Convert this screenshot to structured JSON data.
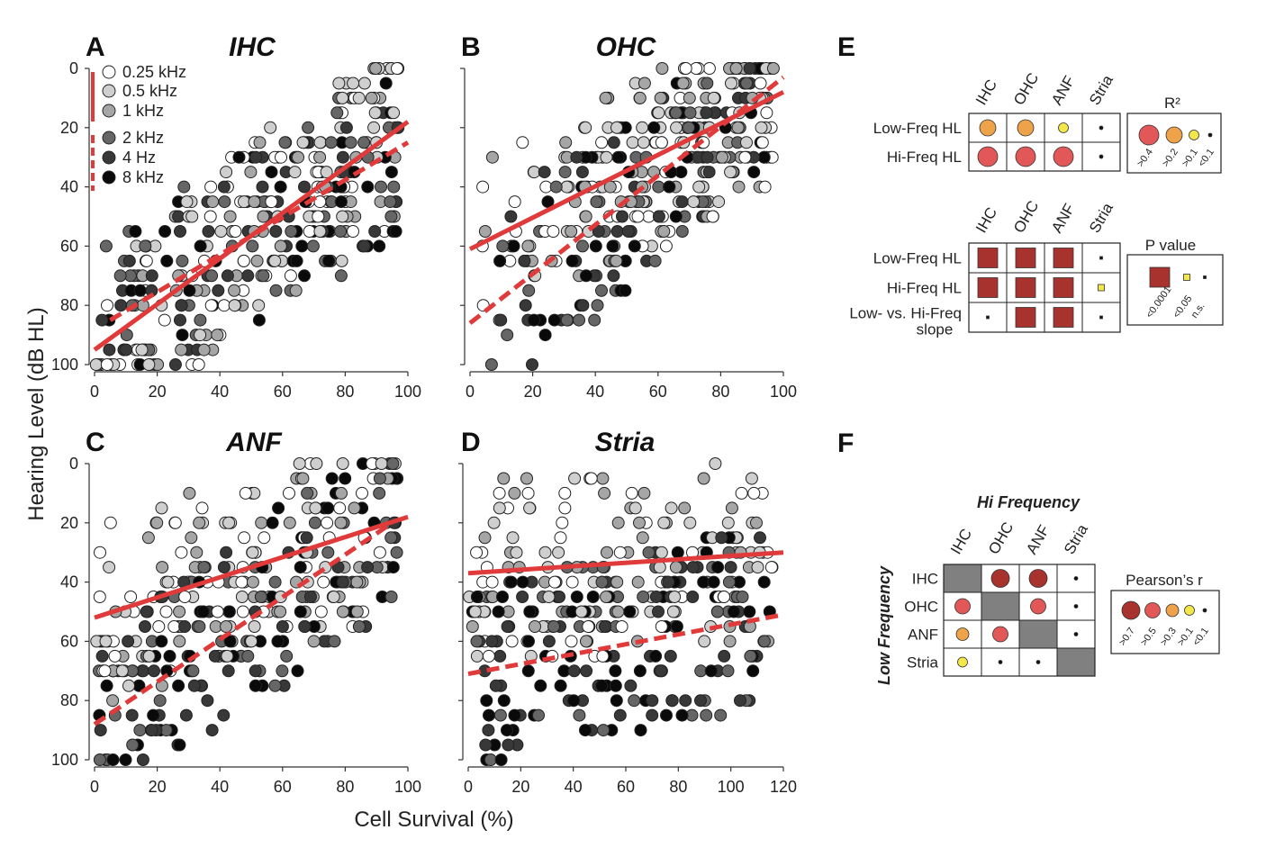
{
  "figure": {
    "y_axis_label": "Hearing Level (dB HL)",
    "x_axis_label": "Cell Survival (%)",
    "legend": {
      "items": [
        {
          "label": "0.25 kHz",
          "color": "#ffffff"
        },
        {
          "label": "0.5 kHz",
          "color": "#cfcfcf"
        },
        {
          "label": "1 kHz",
          "color": "#a6a6a6"
        },
        {
          "label": "2 kHz",
          "color": "#666666"
        },
        {
          "label": "4 Hz",
          "color": "#383838"
        },
        {
          "label": "8 kHz",
          "color": "#0a0a0a"
        }
      ]
    },
    "colors": {
      "fit_line": "#e03a3a",
      "strong": "#a8322d",
      "mid_red": "#e25858",
      "orange": "#eea24a",
      "yellow": "#f3e74a",
      "gray_diag": "#808080"
    }
  },
  "chart_data": [
    {
      "type": "scatter",
      "panel": "A",
      "title": "IHC",
      "xlim": [
        0,
        100
      ],
      "ylim": [
        0,
        100
      ],
      "y_inverted": true,
      "xticks": [
        "0",
        "20",
        "40",
        "60",
        "80",
        "100"
      ],
      "yticks": [
        "0",
        "20",
        "40",
        "60",
        "80",
        "100"
      ],
      "fits": [
        {
          "style": "solid",
          "group": "low frequency",
          "points": [
            [
              0,
              95
            ],
            [
              100,
              18
            ]
          ]
        },
        {
          "style": "dashed",
          "group": "high frequency",
          "points": [
            [
              5,
              85
            ],
            [
              100,
              25
            ]
          ]
        }
      ]
    },
    {
      "type": "scatter",
      "panel": "B",
      "title": "OHC",
      "xlim": [
        0,
        100
      ],
      "ylim": [
        0,
        100
      ],
      "y_inverted": true,
      "xticks": [
        "0",
        "20",
        "40",
        "60",
        "80",
        "100"
      ],
      "yticks": [],
      "fits": [
        {
          "style": "solid",
          "group": "low frequency",
          "points": [
            [
              0,
              61
            ],
            [
              100,
              8
            ]
          ]
        },
        {
          "style": "dashed",
          "group": "high frequency",
          "points": [
            [
              0,
              86
            ],
            [
              100,
              3
            ]
          ]
        }
      ]
    },
    {
      "type": "scatter",
      "panel": "C",
      "title": "ANF",
      "xlim": [
        0,
        100
      ],
      "ylim": [
        0,
        100
      ],
      "y_inverted": true,
      "xticks": [
        "0",
        "20",
        "40",
        "60",
        "80",
        "100"
      ],
      "yticks": [
        "0",
        "20",
        "40",
        "60",
        "80",
        "100"
      ],
      "fits": [
        {
          "style": "solid",
          "group": "low frequency",
          "points": [
            [
              0,
              52
            ],
            [
              100,
              18
            ]
          ]
        },
        {
          "style": "dashed",
          "group": "high frequency",
          "points": [
            [
              0,
              88
            ],
            [
              95,
              20
            ]
          ]
        }
      ]
    },
    {
      "type": "scatter",
      "panel": "D",
      "title": "Stria",
      "xlim": [
        0,
        120
      ],
      "ylim": [
        0,
        100
      ],
      "y_inverted": true,
      "xticks": [
        "0",
        "20",
        "40",
        "60",
        "80",
        "100",
        "120"
      ],
      "yticks": [],
      "fits": [
        {
          "style": "solid",
          "group": "low frequency",
          "points": [
            [
              0,
              37
            ],
            [
              120,
              30
            ]
          ]
        },
        {
          "style": "dashed",
          "group": "high frequency",
          "points": [
            [
              0,
              71
            ],
            [
              120,
              51
            ]
          ]
        }
      ]
    }
  ],
  "matrices": {
    "E_r2": {
      "panel": "E",
      "columns": [
        "IHC",
        "OHC",
        "ANF",
        "Stria"
      ],
      "rows": [
        {
          "label": "Low-Freq HL",
          "cells": [
            ">0.2",
            ">0.2",
            ">0.1",
            "<0.1"
          ]
        },
        {
          "label": "Hi-Freq HL",
          "cells": [
            ">0.4",
            ">0.4",
            ">0.4",
            "<0.1"
          ]
        }
      ],
      "key_title": "R²",
      "key": [
        ">0.4",
        ">0.2",
        ">0.1",
        "<0.1"
      ]
    },
    "E_p": {
      "columns": [
        "IHC",
        "OHC",
        "ANF",
        "Stria"
      ],
      "rows": [
        {
          "label": "Low-Freq HL",
          "cells": [
            "<0.0001",
            "<0.0001",
            "<0.0001",
            "n.s."
          ]
        },
        {
          "label": "Hi-Freq HL",
          "cells": [
            "<0.0001",
            "<0.0001",
            "<0.0001",
            "<0.05"
          ]
        },
        {
          "label_line1": "Low- vs. Hi-Freq",
          "label_line2": "slope",
          "cells": [
            "n.s.",
            "<0.0001",
            "<0.0001",
            "n.s."
          ]
        }
      ],
      "key_title": "P value",
      "key": [
        "<0.0001",
        "<0.05",
        "n.s."
      ]
    },
    "F": {
      "panel": "F",
      "top_title": "Hi Frequency",
      "side_title": "Low Frequency",
      "columns": [
        "IHC",
        "OHC",
        "ANF",
        "Stria"
      ],
      "row_labels": [
        "IHC",
        "OHC",
        "ANF",
        "Stria"
      ],
      "cells": [
        [
          "diag",
          ">0.7",
          ">0.7",
          "<0.1"
        ],
        [
          ">0.5",
          "diag",
          ">0.5",
          "<0.1"
        ],
        [
          ">0.3",
          ">0.5",
          "diag",
          "<0.1"
        ],
        [
          ">0.1",
          "<0.1",
          "<0.1",
          "diag"
        ]
      ],
      "key_title": "Pearson’s r",
      "key": [
        ">0.7",
        ">0.5",
        ">0.3",
        ">0.1",
        "<0.1"
      ]
    }
  }
}
